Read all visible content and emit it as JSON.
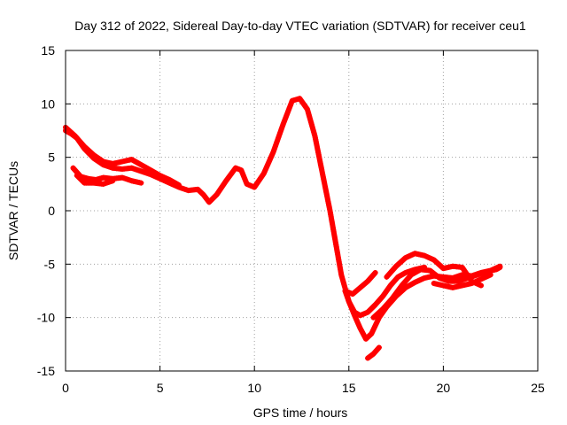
{
  "chart_data": {
    "type": "scatter",
    "title": "Day 312 of 2022, Sidereal Day-to-day VTEC variation (SDTVAR) for receiver ceu1",
    "xlabel": "GPS time / hours",
    "ylabel": "SDTVAR / TECUs",
    "xlim": [
      0,
      25
    ],
    "ylim": [
      -15,
      15
    ],
    "xticks": [
      0,
      5,
      10,
      15,
      20,
      25
    ],
    "yticks": [
      -15,
      -10,
      -5,
      0,
      5,
      10,
      15
    ],
    "xtick_labels": [
      "0",
      "5",
      "10",
      "15",
      "20",
      "25"
    ],
    "ytick_labels": [
      "-15",
      "-10",
      "-5",
      "0",
      "5",
      "10",
      "15"
    ],
    "grid": true,
    "color": "#ff0000",
    "series": [
      {
        "name": "track-main",
        "x": [
          0.0,
          0.3,
          0.6,
          1.0,
          1.5,
          2.0,
          2.5,
          3.0,
          3.5,
          4.0,
          4.5,
          5.0,
          5.5,
          6.0,
          6.5,
          7.0,
          7.3,
          7.6,
          8.0,
          8.5,
          9.0,
          9.3,
          9.6,
          10.0,
          10.5,
          11.0,
          11.5,
          12.0,
          12.4,
          12.8,
          13.2,
          13.6,
          14.0,
          14.3,
          14.6,
          15.0,
          15.3,
          15.6,
          15.9,
          16.2,
          16.6,
          17.0,
          17.5,
          18.0,
          18.5,
          19.0,
          19.5,
          20.0,
          20.5,
          21.0,
          21.5,
          22.0,
          22.5,
          23.0
        ],
        "y": [
          7.5,
          7.2,
          6.8,
          5.8,
          4.9,
          4.3,
          4.0,
          3.9,
          4.0,
          3.7,
          3.4,
          3.0,
          2.6,
          2.2,
          1.9,
          2.0,
          1.5,
          0.8,
          1.5,
          2.8,
          4.0,
          3.8,
          2.5,
          2.2,
          3.5,
          5.5,
          8.0,
          10.3,
          10.5,
          9.5,
          7.0,
          3.5,
          0.0,
          -3.0,
          -6.0,
          -8.5,
          -9.8,
          -11.0,
          -12.0,
          -11.5,
          -10.0,
          -9.0,
          -8.0,
          -7.2,
          -6.7,
          -6.3,
          -6.1,
          -6.2,
          -6.3,
          -6.0,
          -6.1,
          -5.8,
          -5.6,
          -5.2
        ]
      },
      {
        "name": "track-upper-start",
        "x": [
          0.0,
          0.5,
          1.0,
          1.5,
          2.0,
          2.5,
          3.0,
          3.5,
          4.0,
          4.5,
          5.0,
          5.5,
          6.0
        ],
        "y": [
          7.8,
          7.0,
          6.0,
          5.2,
          4.6,
          4.4,
          4.6,
          4.8,
          4.3,
          3.8,
          3.3,
          2.9,
          2.4
        ]
      },
      {
        "name": "track-lower-start",
        "x": [
          0.4,
          0.8,
          1.2,
          1.6,
          2.0,
          2.5,
          3.0,
          3.5,
          4.0
        ],
        "y": [
          4.0,
          3.2,
          3.0,
          2.9,
          3.1,
          3.0,
          3.1,
          2.8,
          2.6
        ]
      },
      {
        "name": "track-lower-start-2",
        "x": [
          0.6,
          1.0,
          1.5,
          2.0,
          2.5
        ],
        "y": [
          3.3,
          2.6,
          2.6,
          2.5,
          2.8
        ]
      },
      {
        "name": "track-dip",
        "x": [
          14.8,
          15.0,
          15.3,
          15.6,
          16.0,
          16.4,
          16.8,
          17.2,
          17.6,
          18.0,
          18.5,
          19.0
        ],
        "y": [
          -7.5,
          -8.5,
          -9.5,
          -9.8,
          -9.5,
          -8.8,
          -8.0,
          -7.0,
          -6.2,
          -5.8,
          -5.5,
          -5.3
        ]
      },
      {
        "name": "track-recovery-high",
        "x": [
          14.8,
          15.2,
          15.6,
          16.0,
          16.4
        ],
        "y": [
          -7.5,
          -7.8,
          -7.2,
          -6.6,
          -5.8
        ]
      },
      {
        "name": "track-recovery-mid",
        "x": [
          16.3,
          16.8,
          17.3,
          17.8,
          18.3,
          18.8,
          19.3,
          19.8,
          20.3,
          20.8,
          21.3,
          21.8,
          22.3,
          22.8,
          23.0
        ],
        "y": [
          -10.0,
          -9.2,
          -8.2,
          -7.0,
          -6.0,
          -5.5,
          -5.6,
          -6.3,
          -6.6,
          -6.6,
          -6.3,
          -6.0,
          -5.7,
          -5.5,
          -5.3
        ]
      },
      {
        "name": "track-hump",
        "x": [
          17.0,
          17.5,
          18.0,
          18.5,
          19.0,
          19.5,
          20.0,
          20.5,
          21.0,
          21.5,
          22.0
        ],
        "y": [
          -6.2,
          -5.2,
          -4.4,
          -4.0,
          -4.2,
          -4.6,
          -5.4,
          -5.2,
          -5.3,
          -6.6,
          -7.0
        ]
      },
      {
        "name": "track-tail-low",
        "x": [
          19.5,
          20.0,
          20.5,
          21.0,
          21.5,
          22.0,
          22.5
        ],
        "y": [
          -6.8,
          -7.0,
          -7.2,
          -7.0,
          -6.8,
          -6.4,
          -6.0
        ]
      },
      {
        "name": "track-fragment",
        "x": [
          16.0,
          16.3,
          16.6
        ],
        "y": [
          -13.8,
          -13.4,
          -12.8
        ]
      }
    ]
  }
}
